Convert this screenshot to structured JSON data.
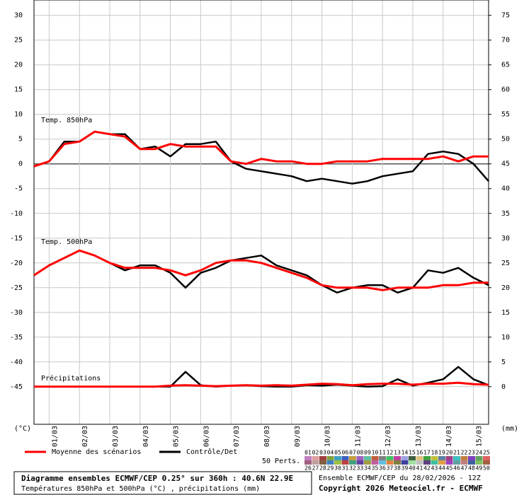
{
  "chart_data": {
    "type": "line",
    "x": [
      0,
      12,
      24,
      36,
      48,
      60,
      72,
      84,
      96,
      108,
      120,
      132,
      144,
      156,
      168,
      180,
      192,
      204,
      216,
      228,
      240,
      252,
      264,
      276,
      288,
      300,
      312,
      324,
      336,
      348,
      360
    ],
    "xlim": [
      0,
      360
    ],
    "xticks": [
      {
        "value": 12,
        "label": "01/03"
      },
      {
        "value": 36,
        "label": "02/03"
      },
      {
        "value": 60,
        "label": "03/03"
      },
      {
        "value": 84,
        "label": "04/03"
      },
      {
        "value": 108,
        "label": "05/03"
      },
      {
        "value": 132,
        "label": "06/03"
      },
      {
        "value": 156,
        "label": "07/03"
      },
      {
        "value": 180,
        "label": "08/03"
      },
      {
        "value": 204,
        "label": "09/03"
      },
      {
        "value": 228,
        "label": "10/03"
      },
      {
        "value": 252,
        "label": "11/03"
      },
      {
        "value": 276,
        "label": "12/03"
      },
      {
        "value": 300,
        "label": "13/03"
      },
      {
        "value": 324,
        "label": "14/03"
      },
      {
        "value": 348,
        "label": "15/03"
      }
    ],
    "ylim": [
      -52.6,
      33.1
    ],
    "yticks": [
      30,
      25,
      20,
      15,
      10,
      5,
      0,
      -5,
      -10,
      -15,
      -20,
      -25,
      -30,
      -35,
      -40,
      -45
    ],
    "y2lim": [
      -7.6,
      78.1
    ],
    "y2ticks": [
      75,
      70,
      65,
      60,
      55,
      50,
      45,
      40,
      35,
      30,
      25,
      20,
      15,
      10,
      5,
      0
    ],
    "ylabel": "(°C)",
    "y2label": "(mm)",
    "grid": true,
    "panels": [
      {
        "label": "Temp. 850hPa",
        "series": [
          {
            "color": "#ff0000",
            "values": [
              -0.5,
              0.5,
              4,
              4.5,
              6.5,
              6,
              5.5,
              3,
              3,
              4,
              3.5,
              3.5,
              3.5,
              0.5,
              0,
              1,
              0.5,
              0.5,
              0,
              0,
              0.5,
              0.5,
              0.5,
              1,
              1,
              1,
              1,
              1.5,
              0.5,
              1.5,
              1.5
            ]
          },
          {
            "color": "#000000",
            "values": [
              -0.5,
              0.5,
              4.5,
              4.5,
              6.5,
              6,
              6,
              3,
              3.5,
              1.5,
              4,
              4,
              4.5,
              0.5,
              -1,
              -1.5,
              -2,
              -2.5,
              -3.5,
              -3,
              -3.5,
              -4,
              -3.5,
              -2.5,
              -2,
              -1.5,
              2,
              2.5,
              2,
              0,
              -3.5
            ]
          }
        ]
      },
      {
        "label": "Temp. 500hPa",
        "series": [
          {
            "color": "#ff0000",
            "values": [
              -22.5,
              -20.5,
              -19,
              -17.5,
              -18.5,
              -20,
              -21,
              -21,
              -21,
              -21.5,
              -22.5,
              -21.5,
              -20,
              -19.5,
              -19.5,
              -20,
              -21,
              -22,
              -23,
              -24.5,
              -25,
              -25,
              -25,
              -25.5,
              -25,
              -25,
              -25,
              -24.5,
              -24.5,
              -24,
              -24
            ]
          },
          {
            "color": "#000000",
            "values": [
              -22.5,
              -20.5,
              -19,
              -17.5,
              -18.5,
              -20,
              -21.5,
              -20.5,
              -20.5,
              -22,
              -25,
              -22,
              -21,
              -19.5,
              -19,
              -18.5,
              -20.5,
              -21.5,
              -22.5,
              -24.5,
              -26,
              -25,
              -24.5,
              -24.5,
              -26,
              -25,
              -21.5,
              -22,
              -21,
              -23,
              -24.5
            ]
          }
        ]
      },
      {
        "label": "Précipitations",
        "series": [
          {
            "color": "#ff0000",
            "axis": "y2",
            "values": [
              0,
              0,
              0,
              0,
              0,
              0,
              0,
              0,
              0,
              0.2,
              0.3,
              0.2,
              0.1,
              0.2,
              0.3,
              0.2,
              0.3,
              0.2,
              0.4,
              0.6,
              0.5,
              0.3,
              0.5,
              0.6,
              0.6,
              0.4,
              0.6,
              0.6,
              0.8,
              0.5,
              0.4
            ]
          },
          {
            "color": "#000000",
            "axis": "y2",
            "values": [
              0,
              0,
              0,
              0,
              0,
              0,
              0,
              0,
              0,
              0,
              3,
              0.3,
              0,
              0.2,
              0.3,
              0.1,
              0,
              0,
              0.3,
              0.2,
              0.4,
              0.2,
              0,
              0.1,
              1.5,
              0.2,
              0.8,
              1.5,
              4,
              1.5,
              0.3
            ]
          }
        ]
      }
    ],
    "legend": [
      {
        "name": "Moyenne des scénarios",
        "color": "#ff0000"
      },
      {
        "name": "Contrôle/Det",
        "color": "#000000"
      }
    ],
    "perturbations_label": "50 Perts.",
    "perturbations": [
      {
        "name": "01",
        "color": "#c080c0"
      },
      {
        "name": "02",
        "color": "#e0a0a0"
      },
      {
        "name": "03",
        "color": "#a04040"
      },
      {
        "name": "04",
        "color": "#80a040"
      },
      {
        "name": "05",
        "color": "#40a0c0"
      },
      {
        "name": "06",
        "color": "#4060c0"
      },
      {
        "name": "07",
        "color": "#c0a040"
      },
      {
        "name": "08",
        "color": "#a060c0"
      },
      {
        "name": "09",
        "color": "#60c0a0"
      },
      {
        "name": "10",
        "color": "#c06040"
      },
      {
        "name": "11",
        "color": "#808080"
      },
      {
        "name": "12",
        "color": "#40c060"
      },
      {
        "name": "13",
        "color": "#c040a0"
      },
      {
        "name": "14",
        "color": "#a0a0e0"
      },
      {
        "name": "15",
        "color": "#406040"
      },
      {
        "name": "16",
        "color": "#e0c080"
      },
      {
        "name": "17",
        "color": "#40a040"
      },
      {
        "name": "18",
        "color": "#c0c040"
      },
      {
        "name": "19",
        "color": "#6080a0"
      },
      {
        "name": "20",
        "color": "#a04080"
      },
      {
        "name": "21",
        "color": "#40c0c0"
      },
      {
        "name": "22",
        "color": "#c08040"
      },
      {
        "name": "23",
        "color": "#8040c0"
      },
      {
        "name": "24",
        "color": "#60a060"
      },
      {
        "name": "25",
        "color": "#e06060"
      },
      {
        "name": "26",
        "color": "#a06080"
      },
      {
        "name": "27",
        "color": "#c0a0a0"
      },
      {
        "name": "28",
        "color": "#806040"
      },
      {
        "name": "29",
        "color": "#4080c0"
      },
      {
        "name": "30",
        "color": "#a0c040"
      },
      {
        "name": "31",
        "color": "#c04040"
      },
      {
        "name": "32",
        "color": "#40a080"
      },
      {
        "name": "33",
        "color": "#6040a0"
      },
      {
        "name": "34",
        "color": "#a0a040"
      },
      {
        "name": "35",
        "color": "#c060a0"
      },
      {
        "name": "36",
        "color": "#60c0e0"
      },
      {
        "name": "37",
        "color": "#e08040"
      },
      {
        "name": "38",
        "color": "#808040"
      },
      {
        "name": "39",
        "color": "#4040a0"
      },
      {
        "name": "40",
        "color": "#a0e0a0"
      },
      {
        "name": "41",
        "color": "#c0c0c0"
      },
      {
        "name": "42",
        "color": "#604080"
      },
      {
        "name": "43",
        "color": "#40c0a0"
      },
      {
        "name": "44",
        "color": "#e0a040"
      },
      {
        "name": "45",
        "color": "#a040c0"
      },
      {
        "name": "46",
        "color": "#60a0a0"
      },
      {
        "name": "47",
        "color": "#c08080"
      },
      {
        "name": "48",
        "color": "#4060a0"
      },
      {
        "name": "49",
        "color": "#80c060"
      },
      {
        "name": "50",
        "color": "#a06040"
      }
    ],
    "footer": {
      "title": "Diagramme ensembles ECMWF/CEP 0.25° sur 360h : 40.6N 22.9E",
      "subtitle": "Températures 850hPa et 500hPa (°C) , précipitations (mm)",
      "run": "Ensemble ECMWF/CEP du 28/02/2026 - 12Z",
      "copyright": "Copyright 2026 Meteociel.fr - ECMWF"
    }
  }
}
